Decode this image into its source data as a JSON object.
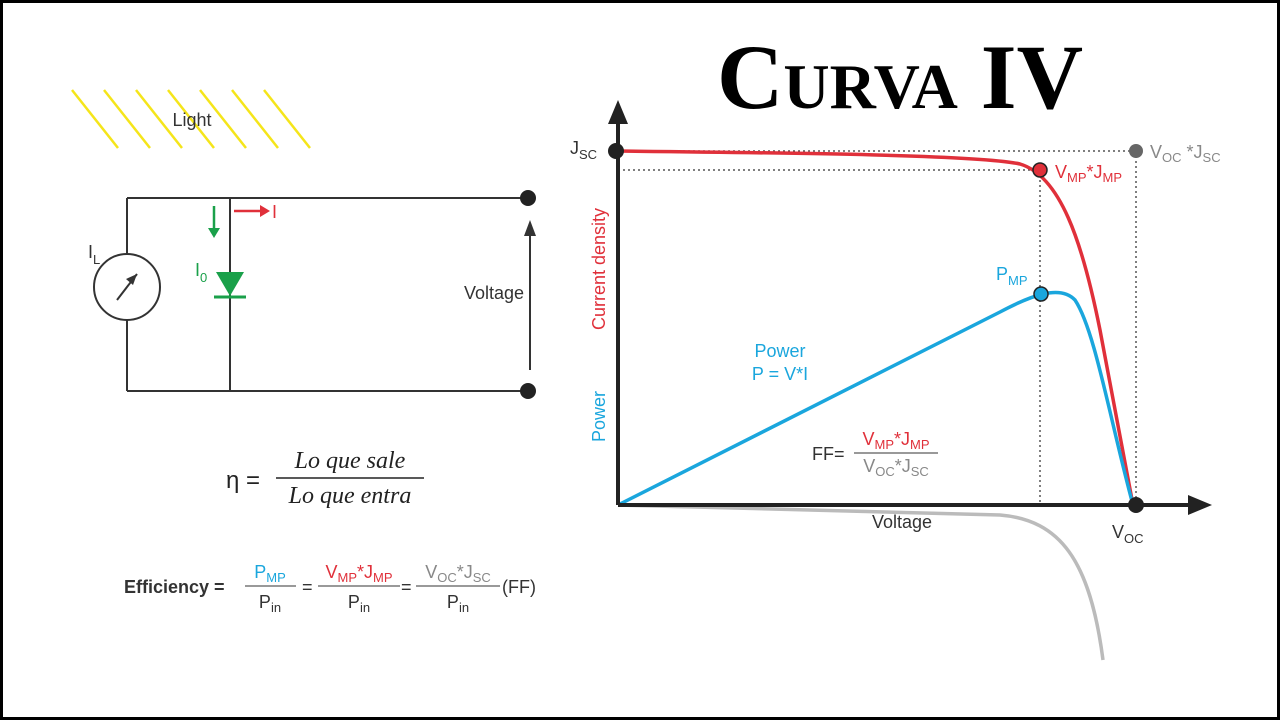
{
  "title": "Curva IV",
  "circuit": {
    "light": "Light",
    "source_label": {
      "base": "I",
      "sub": "L"
    },
    "diode_label": {
      "base": "I",
      "sub": "0"
    },
    "current": "I",
    "voltage": "Voltage"
  },
  "eta": {
    "lhs": "η =",
    "numerator": "Lo que sale",
    "denominator": "Lo que entra"
  },
  "efficiency": {
    "label": "Efficiency =",
    "f1_num": {
      "base": "P",
      "sub": "MP"
    },
    "f1_den": {
      "base": "P",
      "sub": "in"
    },
    "eq1": "=",
    "f2_num": {
      "a": "V",
      "a_sub": "MP",
      "mid": "*J",
      "b_sub": "MP"
    },
    "f2_den": {
      "base": "P",
      "sub": "in"
    },
    "eq2": "=",
    "f3_num": {
      "a": "V",
      "a_sub": "OC",
      "mid": "*J",
      "b_sub": "SC"
    },
    "f3_den": {
      "base": "P",
      "sub": "in"
    },
    "ff": "(FF)"
  },
  "graph": {
    "jsc": {
      "base": "J",
      "sub": "SC"
    },
    "voc": {
      "base": "V",
      "sub": "OC"
    },
    "mp_point": {
      "a": "V",
      "a_sub": "MP",
      "mid": "*J",
      "b_sub": "MP"
    },
    "max_point": {
      "a": "V",
      "a_sub": "OC",
      "mid": " *J",
      "b_sub": "SC"
    },
    "pmp": {
      "base": "P",
      "sub": "MP"
    },
    "y_label_current": "Current  density",
    "y_label_power": "Power",
    "x_label": "Voltage",
    "power_label": "Power",
    "power_formula": "P = V*I",
    "ff": {
      "lhs": "FF=",
      "num": {
        "a": "V",
        "a_sub": "MP",
        "mid": "*J",
        "b_sub": "MP"
      },
      "den": {
        "a": "V",
        "a_sub": "OC",
        "mid": "*J",
        "b_sub": "SC"
      }
    }
  }
}
